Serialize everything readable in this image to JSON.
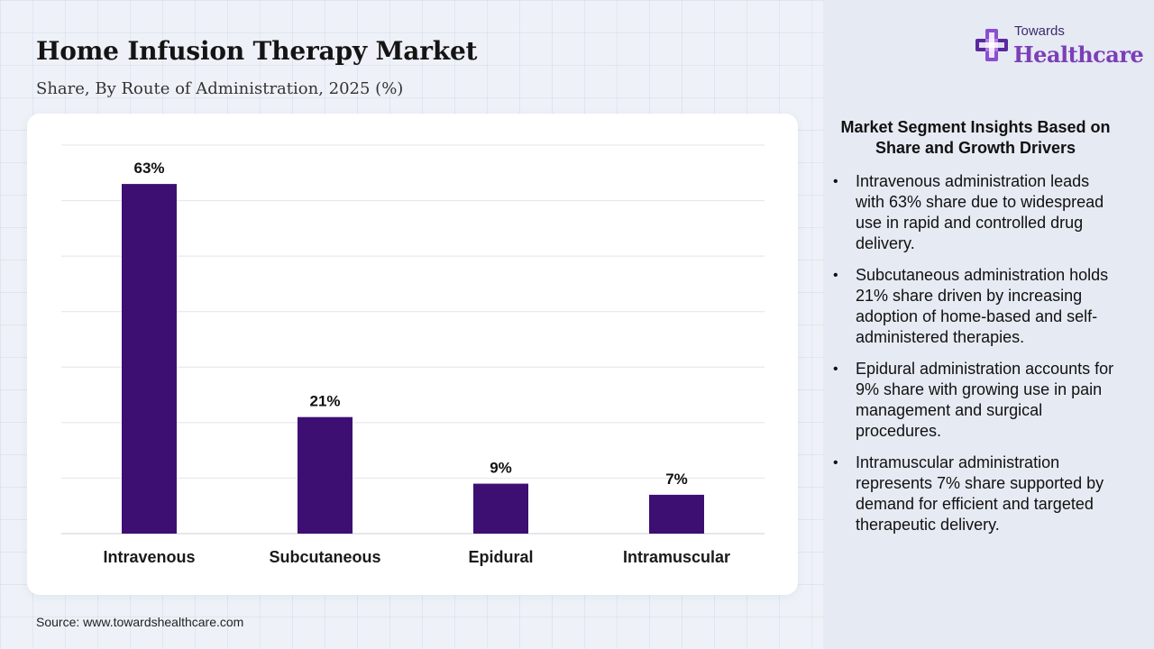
{
  "header": {
    "title": "Home Infusion Therapy Market",
    "subtitle": "Share, By Route of Administration, 2025 (%)"
  },
  "chart_data": {
    "type": "bar",
    "categories": [
      "Intravenous",
      "Subcutaneous",
      "Epidural",
      "Intramuscular"
    ],
    "values": [
      63,
      21,
      9,
      7
    ],
    "data_labels": [
      "63%",
      "21%",
      "9%",
      "7%"
    ],
    "unit": "%",
    "ylim": [
      0,
      70
    ],
    "grid": true,
    "legend": "none",
    "bar_color": "#3d0f73",
    "title": "Home Infusion Therapy Market",
    "xlabel": "",
    "ylabel": ""
  },
  "source": "Source: www.towardshealthcare.com",
  "logo": {
    "top_text": "Towards",
    "main_text": "Healthcare",
    "icon": "medical-cross-icon"
  },
  "insights": {
    "heading": "Market Segment Insights Based on Share and Growth Drivers",
    "items": [
      "Intravenous administration leads with 63% share due to widespread use in rapid and controlled drug delivery.",
      "Subcutaneous administration holds 21% share driven by increasing adoption of home-based and self-administered therapies.",
      "Epidural administration accounts for 9% share with growing use in pain management and surgical procedures.",
      "Intramuscular administration represents 7% share supported by demand for efficient and targeted therapeutic delivery."
    ]
  },
  "colors": {
    "bar": "#3d0f73",
    "brand": "#7b3fb8",
    "panel": "#e6eaf3"
  }
}
